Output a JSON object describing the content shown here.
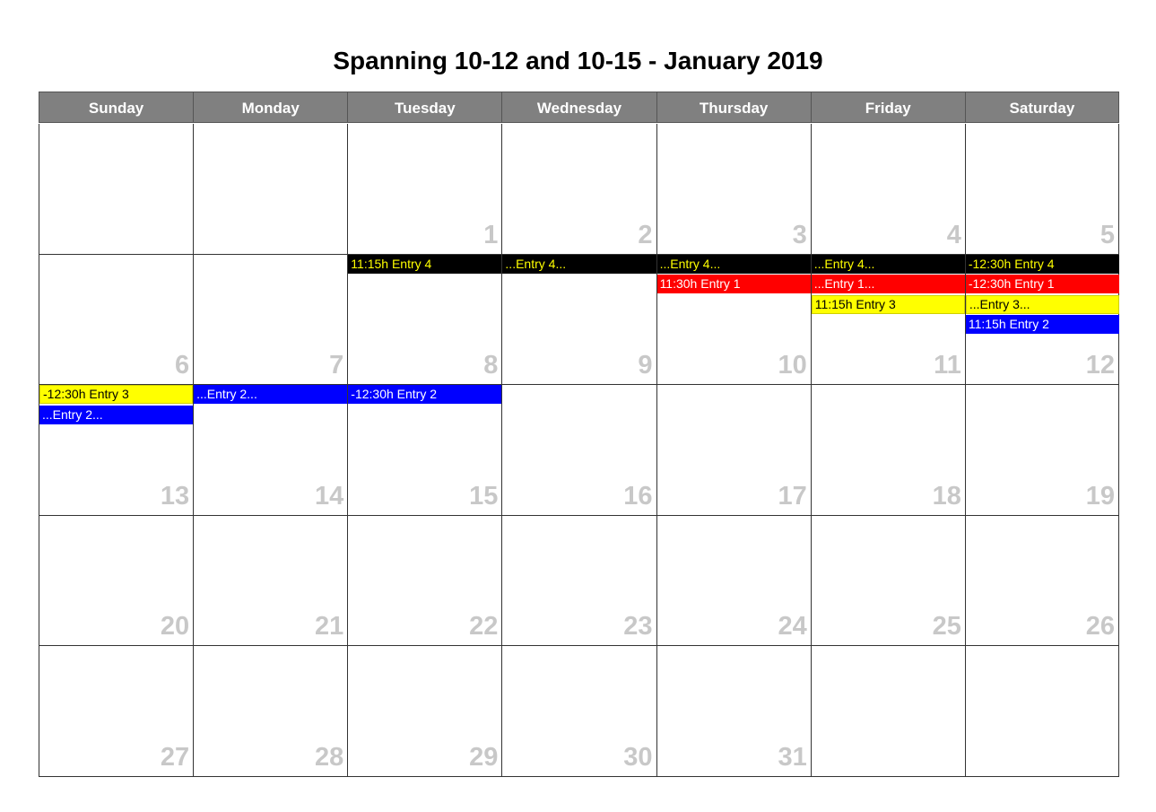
{
  "title": "Spanning 10-12 and 10-15 - January 2019",
  "weekdays": [
    "Sunday",
    "Monday",
    "Tuesday",
    "Wednesday",
    "Thursday",
    "Friday",
    "Saturday"
  ],
  "weeks": [
    [
      "",
      "",
      "1",
      "2",
      "3",
      "4",
      "5"
    ],
    [
      "6",
      "7",
      "8",
      "9",
      "10",
      "11",
      "12"
    ],
    [
      "13",
      "14",
      "15",
      "16",
      "17",
      "18",
      "19"
    ],
    [
      "20",
      "21",
      "22",
      "23",
      "24",
      "25",
      "26"
    ],
    [
      "27",
      "28",
      "29",
      "30",
      "31",
      "",
      ""
    ]
  ],
  "colors": {
    "header_bg": "#808080",
    "day_number": "#c8c8c8",
    "black_event_bg": "#000000",
    "black_event_text": "#ffff00",
    "red_event_bg": "#ff0000",
    "yellow_event_bg": "#ffff00",
    "blue_event_bg": "#0000ff"
  },
  "events": [
    {
      "week": 1,
      "day": 2,
      "slot": 0,
      "color": "black",
      "label": "11:15h Entry 4"
    },
    {
      "week": 1,
      "day": 3,
      "slot": 0,
      "color": "black",
      "label": "...Entry 4..."
    },
    {
      "week": 1,
      "day": 4,
      "slot": 0,
      "color": "black",
      "label": "...Entry 4..."
    },
    {
      "week": 1,
      "day": 5,
      "slot": 0,
      "color": "black",
      "label": "...Entry 4..."
    },
    {
      "week": 1,
      "day": 6,
      "slot": 0,
      "color": "black",
      "label": "-12:30h Entry 4"
    },
    {
      "week": 1,
      "day": 4,
      "slot": 1,
      "color": "red",
      "label": "11:30h Entry 1"
    },
    {
      "week": 1,
      "day": 5,
      "slot": 1,
      "color": "red",
      "label": "...Entry 1..."
    },
    {
      "week": 1,
      "day": 6,
      "slot": 1,
      "color": "red",
      "label": "-12:30h Entry 1"
    },
    {
      "week": 1,
      "day": 5,
      "slot": 2,
      "color": "yellow",
      "label": "11:15h Entry 3"
    },
    {
      "week": 1,
      "day": 6,
      "slot": 2,
      "color": "yellow",
      "label": "...Entry 3..."
    },
    {
      "week": 1,
      "day": 6,
      "slot": 3,
      "color": "blue",
      "label": "11:15h Entry 2"
    },
    {
      "week": 2,
      "day": 0,
      "slot": 0,
      "color": "yellow",
      "label": "-12:30h Entry 3"
    },
    {
      "week": 2,
      "day": 0,
      "slot": 1,
      "color": "blue",
      "label": "...Entry 2..."
    },
    {
      "week": 2,
      "day": 1,
      "slot": 0,
      "color": "blue",
      "label": "...Entry 2..."
    },
    {
      "week": 2,
      "day": 2,
      "slot": 0,
      "color": "blue",
      "label": "-12:30h Entry 2"
    }
  ]
}
